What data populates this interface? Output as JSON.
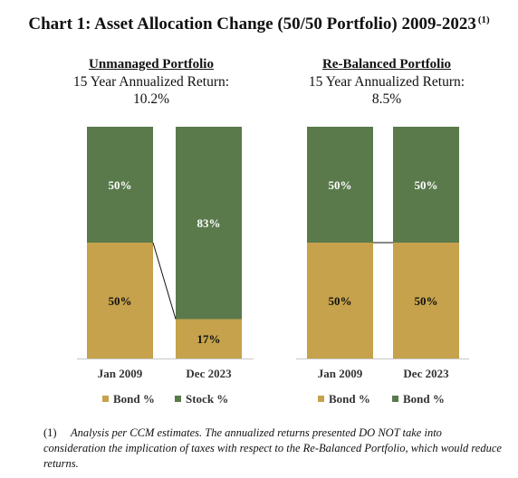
{
  "title": "Chart 1:  Asset Allocation Change (50/50 Portfolio) 2009-2023",
  "title_note": "(1)",
  "colors": {
    "bond": "#c5a24b",
    "stock": "#5a7a4c",
    "axis": "#c8c8c8"
  },
  "chart_data": [
    {
      "type": "bar",
      "stacked": true,
      "title": "Unmanaged Portfolio",
      "subtitle_line1": "15 Year Annualized Return:",
      "subtitle_line2": "10.2%",
      "categories": [
        "Jan 2009",
        "Dec 2023"
      ],
      "series": [
        {
          "name": "Bond %",
          "color": "#c5a24b",
          "values": [
            50,
            17
          ],
          "labels": [
            "50%",
            "17%"
          ]
        },
        {
          "name": "Stock %",
          "color": "#5a7a4c",
          "values": [
            50,
            83
          ],
          "labels": [
            "50%",
            "83%"
          ]
        }
      ],
      "ylim": [
        0,
        100
      ],
      "legend": [
        "Bond %",
        "Stock %"
      ],
      "legend_position": "bottom"
    },
    {
      "type": "bar",
      "stacked": true,
      "title": "Re-Balanced Portfolio",
      "subtitle_line1": "15 Year Annualized Return:",
      "subtitle_line2": "8.5%",
      "categories": [
        "Jan 2009",
        "Dec 2023"
      ],
      "series": [
        {
          "name": "Bond %",
          "color": "#c5a24b",
          "values": [
            50,
            50
          ],
          "labels": [
            "50%",
            "50%"
          ]
        },
        {
          "name": "Bond %",
          "color": "#5a7a4c",
          "values": [
            50,
            50
          ],
          "labels": [
            "50%",
            "50%"
          ]
        }
      ],
      "ylim": [
        0,
        100
      ],
      "legend": [
        "Bond %",
        "Bond %"
      ],
      "legend_position": "bottom"
    }
  ],
  "footnote": {
    "num": "(1)",
    "text": "Analysis per CCM estimates.  The annualized returns presented DO NOT take into consideration the implication of taxes with respect to the Re-Balanced Portfolio, which would reduce returns."
  }
}
